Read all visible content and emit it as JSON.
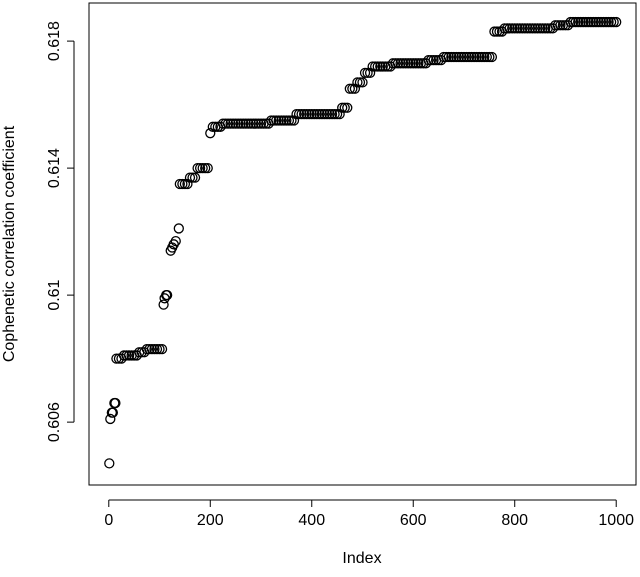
{
  "chart_data": {
    "type": "scatter",
    "x_label": "Index",
    "y_label": "Cophenetic correlation coefficient",
    "xlim": [
      -39,
      1039
    ],
    "ylim": [
      0.60402,
      0.6192
    ],
    "xticks": [
      0,
      200,
      400,
      600,
      800,
      1000
    ],
    "yticks": [
      0.606,
      0.61,
      0.614,
      0.618
    ],
    "color": "#000000",
    "x": [
      1,
      3,
      6,
      8,
      11,
      13,
      15,
      20,
      25,
      30,
      35,
      40,
      45,
      50,
      55,
      60,
      65,
      70,
      75,
      80,
      85,
      90,
      95,
      100,
      105,
      108,
      110,
      113,
      115,
      122,
      125,
      128,
      132,
      138,
      140,
      145,
      150,
      155,
      160,
      165,
      170,
      175,
      180,
      185,
      190,
      195,
      200,
      205,
      210,
      215,
      220,
      225,
      230,
      235,
      240,
      245,
      250,
      255,
      260,
      265,
      270,
      275,
      280,
      285,
      290,
      295,
      300,
      305,
      310,
      315,
      320,
      325,
      330,
      335,
      340,
      345,
      350,
      355,
      360,
      365,
      370,
      375,
      380,
      385,
      390,
      395,
      400,
      405,
      410,
      415,
      420,
      425,
      430,
      435,
      440,
      445,
      450,
      455,
      460,
      465,
      470,
      475,
      480,
      485,
      490,
      495,
      500,
      505,
      510,
      515,
      520,
      525,
      530,
      535,
      540,
      545,
      550,
      555,
      560,
      565,
      570,
      575,
      580,
      585,
      590,
      595,
      600,
      605,
      610,
      615,
      620,
      625,
      630,
      635,
      640,
      645,
      650,
      655,
      660,
      665,
      670,
      675,
      680,
      685,
      690,
      695,
      700,
      705,
      710,
      715,
      720,
      725,
      730,
      735,
      740,
      745,
      750,
      755,
      760,
      765,
      770,
      775,
      780,
      785,
      790,
      795,
      800,
      805,
      810,
      815,
      820,
      825,
      830,
      835,
      840,
      845,
      850,
      855,
      860,
      865,
      870,
      875,
      880,
      885,
      890,
      895,
      900,
      905,
      910,
      915,
      920,
      925,
      930,
      935,
      940,
      945,
      950,
      955,
      960,
      965,
      970,
      975,
      980,
      985,
      990,
      995,
      1000
    ],
    "values": [
      0.6047,
      0.6061,
      0.6063,
      0.6063,
      0.6066,
      0.6066,
      0.608,
      0.608,
      0.608,
      0.6081,
      0.6081,
      0.6081,
      0.6081,
      0.6081,
      0.6081,
      0.6082,
      0.6082,
      0.6082,
      0.6083,
      0.6083,
      0.6083,
      0.6083,
      0.6083,
      0.6083,
      0.6083,
      0.6097,
      0.6099,
      0.61,
      0.61,
      0.6114,
      0.6115,
      0.6116,
      0.6117,
      0.6121,
      0.6135,
      0.6135,
      0.6135,
      0.6135,
      0.6137,
      0.6137,
      0.6137,
      0.614,
      0.614,
      0.614,
      0.614,
      0.614,
      0.6151,
      0.6153,
      0.6153,
      0.6153,
      0.6153,
      0.6154,
      0.6154,
      0.6154,
      0.6154,
      0.6154,
      0.6154,
      0.6154,
      0.6154,
      0.6154,
      0.6154,
      0.6154,
      0.6154,
      0.6154,
      0.6154,
      0.6154,
      0.6154,
      0.6154,
      0.6154,
      0.6154,
      0.6155,
      0.6155,
      0.6155,
      0.6155,
      0.6155,
      0.6155,
      0.6155,
      0.6155,
      0.6155,
      0.6155,
      0.6157,
      0.6157,
      0.6157,
      0.6157,
      0.6157,
      0.6157,
      0.6157,
      0.6157,
      0.6157,
      0.6157,
      0.6157,
      0.6157,
      0.6157,
      0.6157,
      0.6157,
      0.6157,
      0.6157,
      0.6157,
      0.6159,
      0.6159,
      0.6159,
      0.6165,
      0.6165,
      0.6165,
      0.6167,
      0.6167,
      0.6167,
      0.617,
      0.617,
      0.617,
      0.6172,
      0.6172,
      0.6172,
      0.6172,
      0.6172,
      0.6172,
      0.6172,
      0.6172,
      0.6173,
      0.6173,
      0.6173,
      0.6173,
      0.6173,
      0.6173,
      0.6173,
      0.6173,
      0.6173,
      0.6173,
      0.6173,
      0.6173,
      0.6173,
      0.6173,
      0.6174,
      0.6174,
      0.6174,
      0.6174,
      0.6174,
      0.6174,
      0.6175,
      0.6175,
      0.6175,
      0.6175,
      0.6175,
      0.6175,
      0.6175,
      0.6175,
      0.6175,
      0.6175,
      0.6175,
      0.6175,
      0.6175,
      0.6175,
      0.6175,
      0.6175,
      0.6175,
      0.6175,
      0.6175,
      0.6175,
      0.6183,
      0.6183,
      0.6183,
      0.6183,
      0.6184,
      0.6184,
      0.6184,
      0.6184,
      0.6184,
      0.6184,
      0.6184,
      0.6184,
      0.6184,
      0.6184,
      0.6184,
      0.6184,
      0.6184,
      0.6184,
      0.6184,
      0.6184,
      0.6184,
      0.6184,
      0.6184,
      0.6184,
      0.6185,
      0.6185,
      0.6185,
      0.6185,
      0.6185,
      0.6185,
      0.6186,
      0.6186,
      0.6186,
      0.6186,
      0.6186,
      0.6186,
      0.6186,
      0.6186,
      0.6186,
      0.6186,
      0.6186,
      0.6186,
      0.6186,
      0.6186,
      0.6186,
      0.6186,
      0.6186,
      0.6186,
      0.6186
    ]
  }
}
